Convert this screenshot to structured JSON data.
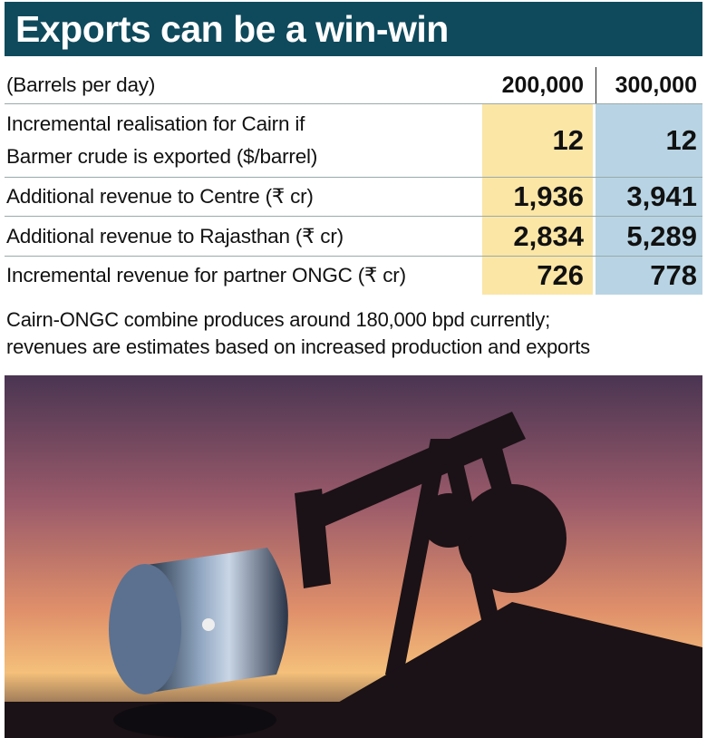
{
  "title": "Exports can be a win-win",
  "table": {
    "header": [
      "(Barrels per day)",
      "200,000",
      "300,000"
    ],
    "rows": [
      [
        "Incremental realisation for Cairn if\nBarmer crude is exported ($/barrel)",
        "12",
        "12"
      ],
      [
        "Additional revenue to Centre (₹ cr)",
        "1,936",
        "3,941"
      ],
      [
        "Additional revenue to Rajasthan (₹ cr)",
        "2,834",
        "5,289"
      ],
      [
        "Incremental revenue for partner ONGC (₹ cr)",
        "726",
        "778"
      ]
    ]
  },
  "note": "Cairn-ONGC combine produces around 180,000 bpd currently;\nrevenues are estimates based on increased production and exports"
}
